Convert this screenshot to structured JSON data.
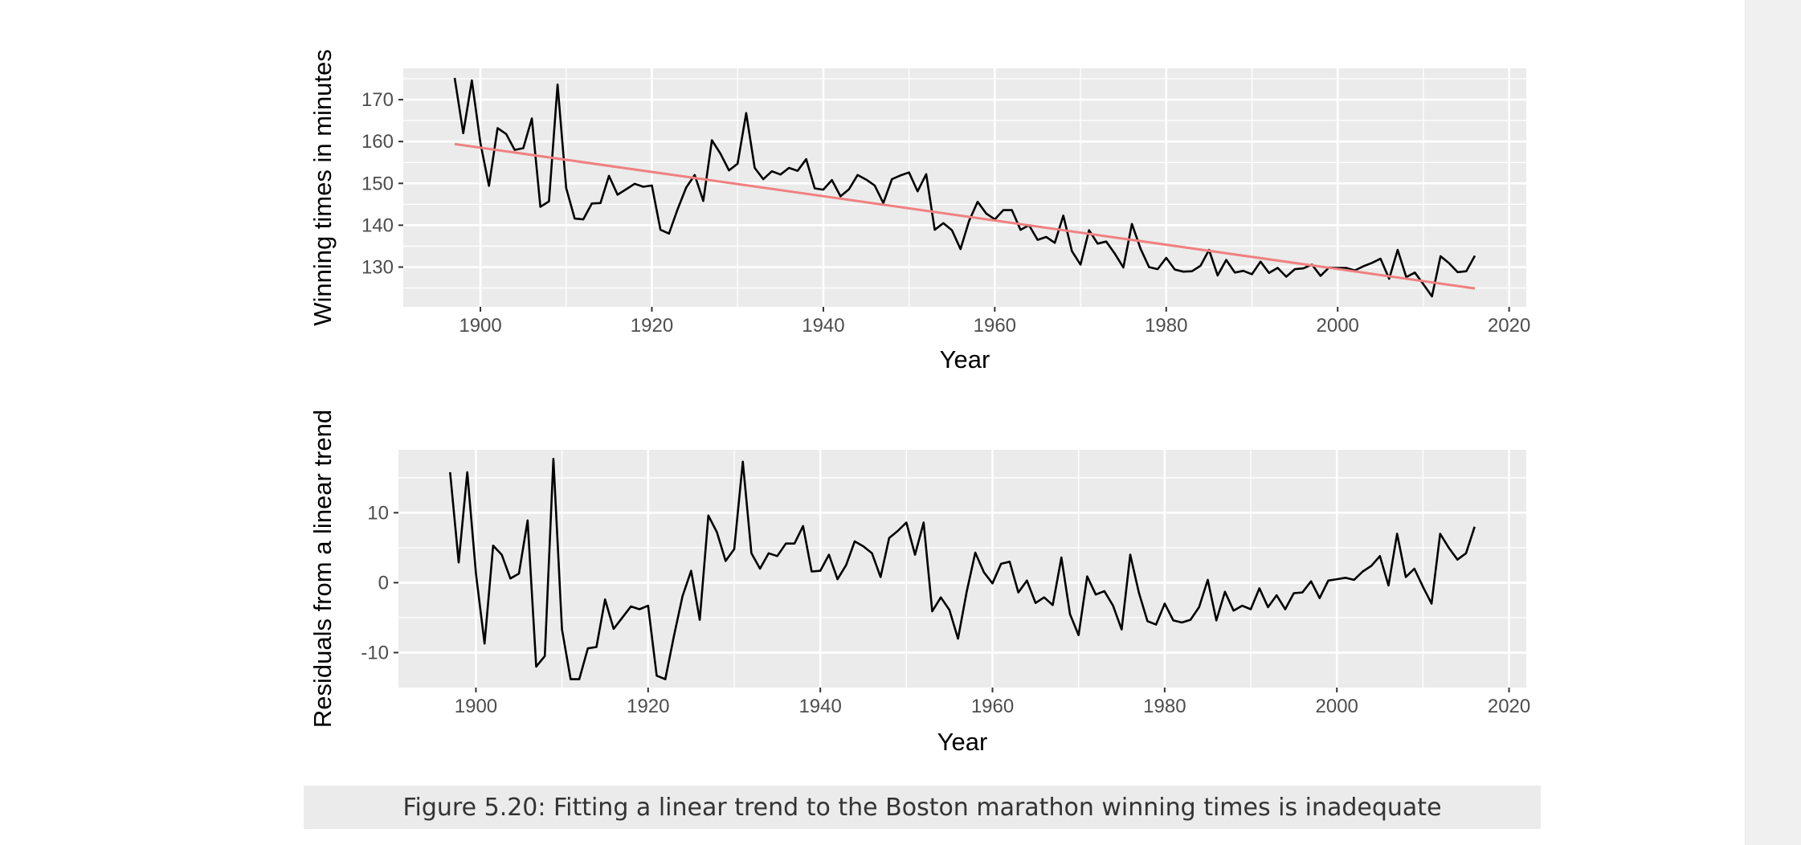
{
  "caption": "Figure 5.20: Fitting a linear trend to the Boston marathon winning times is inadequate",
  "colors": {
    "panel_background": "#ebebeb",
    "gridline": "#ffffff",
    "series_line": "#000000",
    "trend_line": "#f08080"
  },
  "chart_data": [
    {
      "type": "line",
      "xlabel": "Year",
      "ylabel": "Winning times in minutes",
      "xlim": [
        1891,
        2022
      ],
      "ylim": [
        120.5,
        177.5
      ],
      "x_ticks": [
        1900,
        1920,
        1940,
        1960,
        1980,
        2000,
        2020
      ],
      "y_ticks": [
        130,
        140,
        150,
        160,
        170
      ],
      "grid": true,
      "x": [
        1897,
        1898,
        1899,
        1900,
        1901,
        1902,
        1903,
        1904,
        1905,
        1906,
        1907,
        1908,
        1909,
        1910,
        1911,
        1912,
        1913,
        1914,
        1915,
        1916,
        1917,
        1918,
        1919,
        1920,
        1921,
        1922,
        1923,
        1924,
        1925,
        1926,
        1927,
        1928,
        1929,
        1930,
        1931,
        1932,
        1933,
        1934,
        1935,
        1936,
        1937,
        1938,
        1939,
        1940,
        1941,
        1942,
        1943,
        1944,
        1945,
        1946,
        1947,
        1948,
        1949,
        1950,
        1951,
        1952,
        1953,
        1954,
        1955,
        1956,
        1957,
        1958,
        1959,
        1960,
        1961,
        1962,
        1963,
        1964,
        1965,
        1966,
        1967,
        1968,
        1969,
        1970,
        1971,
        1972,
        1973,
        1974,
        1975,
        1976,
        1977,
        1978,
        1979,
        1980,
        1981,
        1982,
        1983,
        1984,
        1985,
        1986,
        1987,
        1988,
        1989,
        1990,
        1991,
        1992,
        1993,
        1994,
        1995,
        1996,
        1997,
        1998,
        1999,
        2000,
        2001,
        2002,
        2003,
        2004,
        2005,
        2006,
        2007,
        2008,
        2009,
        2010,
        2011,
        2012,
        2013,
        2014,
        2015,
        2016
      ],
      "series": [
        {
          "values": [
            175.2,
            162.0,
            174.6,
            159.7,
            149.4,
            163.2,
            161.8,
            158.0,
            158.4,
            165.5,
            144.4,
            145.7,
            173.6,
            148.9,
            141.6,
            141.4,
            145.2,
            145.3,
            151.8,
            147.3,
            148.6,
            149.9,
            149.2,
            149.5,
            138.9,
            138.0,
            143.8,
            149.0,
            152.0,
            145.8,
            160.3,
            157.1,
            153.1,
            154.7,
            166.8,
            153.7,
            151.0,
            152.9,
            152.1,
            153.7,
            153.0,
            155.8,
            148.8,
            148.5,
            150.8,
            146.9,
            148.6,
            152.0,
            150.9,
            149.5,
            145.3,
            151.0,
            151.9,
            152.6,
            148.1,
            152.2,
            138.9,
            140.5,
            138.8,
            134.3,
            141.0,
            145.6,
            142.8,
            141.4,
            143.6,
            143.6,
            138.9,
            140.0,
            136.5,
            137.2,
            135.8,
            142.3,
            133.8,
            130.6,
            138.8,
            135.6,
            136.1,
            133.2,
            129.9,
            140.3,
            134.4,
            130.0,
            129.5,
            132.2,
            129.4,
            128.9,
            129.0,
            130.3,
            134.1,
            128.0,
            131.7,
            128.7,
            129.1,
            128.3,
            131.3,
            128.6,
            129.8,
            127.7,
            129.5,
            129.7,
            130.6,
            127.9,
            129.9,
            129.8,
            129.8,
            129.2,
            130.2,
            131.0,
            132.0,
            127.2,
            134.1,
            127.6,
            128.7,
            125.9,
            123.0,
            132.6,
            130.9,
            128.8,
            129.0,
            132.7
          ]
        },
        {
          "values": [
            159.4,
            124.9
          ],
          "x": [
            1897,
            2016
          ]
        }
      ]
    },
    {
      "type": "line",
      "xlabel": "Year",
      "ylabel": "Residuals from a linear trend",
      "xlim": [
        1891,
        2022
      ],
      "ylim": [
        -15.0,
        19.0
      ],
      "x_ticks": [
        1900,
        1920,
        1940,
        1960,
        1980,
        2000,
        2020
      ],
      "y_ticks": [
        -10,
        0,
        10
      ],
      "grid": true,
      "x": [
        1897,
        1898,
        1899,
        1900,
        1901,
        1902,
        1903,
        1904,
        1905,
        1906,
        1907,
        1908,
        1909,
        1910,
        1911,
        1912,
        1913,
        1914,
        1915,
        1916,
        1917,
        1918,
        1919,
        1920,
        1921,
        1922,
        1923,
        1924,
        1925,
        1926,
        1927,
        1928,
        1929,
        1930,
        1931,
        1932,
        1933,
        1934,
        1935,
        1936,
        1937,
        1938,
        1939,
        1940,
        1941,
        1942,
        1943,
        1944,
        1945,
        1946,
        1947,
        1948,
        1949,
        1950,
        1951,
        1952,
        1953,
        1954,
        1955,
        1956,
        1957,
        1958,
        1959,
        1960,
        1961,
        1962,
        1963,
        1964,
        1965,
        1966,
        1967,
        1968,
        1969,
        1970,
        1971,
        1972,
        1973,
        1974,
        1975,
        1976,
        1977,
        1978,
        1979,
        1980,
        1981,
        1982,
        1983,
        1984,
        1985,
        1986,
        1987,
        1988,
        1989,
        1990,
        1991,
        1992,
        1993,
        1994,
        1995,
        1996,
        1997,
        1998,
        1999,
        2000,
        2001,
        2002,
        2003,
        2004,
        2005,
        2006,
        2007,
        2008,
        2009,
        2010,
        2011,
        2012,
        2013,
        2014,
        2015,
        2016
      ],
      "series": [
        {
          "values": [
            15.8,
            2.9,
            15.8,
            1.3,
            -8.7,
            5.3,
            4.0,
            0.6,
            1.3,
            8.9,
            -12.0,
            -10.5,
            17.7,
            -6.7,
            -13.8,
            -13.8,
            -9.4,
            -9.2,
            -2.4,
            -6.6,
            -5.0,
            -3.4,
            -3.8,
            -3.3,
            -13.3,
            -13.8,
            -7.6,
            -1.9,
            1.7,
            -5.3,
            9.6,
            7.2,
            3.1,
            4.8,
            17.3,
            4.2,
            2.0,
            4.2,
            3.8,
            5.6,
            5.6,
            8.1,
            1.6,
            1.7,
            4.0,
            0.5,
            2.5,
            5.9,
            5.2,
            4.2,
            0.8,
            6.4,
            7.4,
            8.6,
            4.0,
            8.6,
            -4.1,
            -2.1,
            -3.9,
            -8.0,
            -1.3,
            4.3,
            1.5,
            -0.1,
            2.7,
            3.0,
            -1.4,
            0.3,
            -2.9,
            -2.1,
            -3.2,
            3.6,
            -4.5,
            -7.5,
            0.9,
            -1.7,
            -1.2,
            -3.3,
            -6.7,
            4.0,
            -1.4,
            -5.5,
            -6.0,
            -3.0,
            -5.4,
            -5.7,
            -5.3,
            -3.5,
            0.4,
            -5.4,
            -1.3,
            -4.0,
            -3.3,
            -3.8,
            -0.8,
            -3.5,
            -1.8,
            -3.8,
            -1.5,
            -1.4,
            0.2,
            -2.2,
            0.3,
            0.5,
            0.7,
            0.4,
            1.6,
            2.4,
            3.8,
            -0.4,
            7.0,
            0.8,
            2.0,
            -0.6,
            -3.0,
            7.0,
            5.0,
            3.3,
            4.2,
            8.0
          ]
        }
      ]
    }
  ]
}
